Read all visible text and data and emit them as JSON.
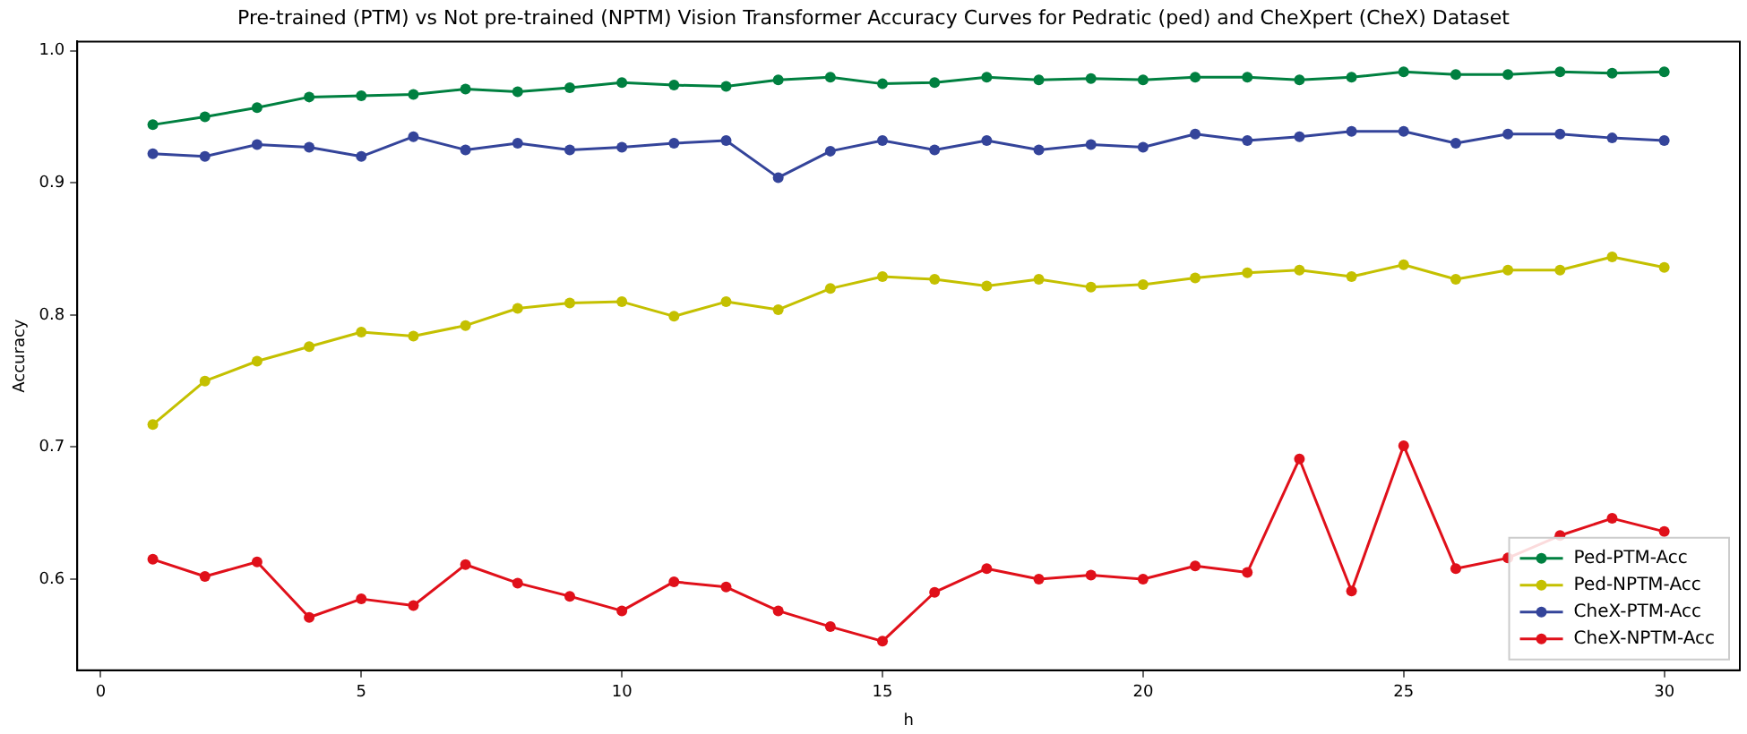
{
  "chart_data": {
    "type": "line",
    "title": "Pre-trained (PTM) vs Not pre-trained (NPTM) Vision Transformer Accuracy Curves for Pedratic (ped) and CheXpert (CheX) Dataset",
    "xlabel": "h",
    "ylabel": "Accuracy",
    "x": [
      1,
      2,
      3,
      4,
      5,
      6,
      7,
      8,
      9,
      10,
      11,
      12,
      13,
      14,
      15,
      16,
      17,
      18,
      19,
      20,
      21,
      22,
      23,
      24,
      25,
      26,
      27,
      28,
      29,
      30
    ],
    "series": [
      {
        "name": "Ped-PTM-Acc",
        "color": "#008040",
        "values": [
          0.944,
          0.95,
          0.957,
          0.965,
          0.966,
          0.967,
          0.971,
          0.969,
          0.972,
          0.976,
          0.974,
          0.973,
          0.978,
          0.98,
          0.975,
          0.976,
          0.98,
          0.978,
          0.979,
          0.978,
          0.98,
          0.98,
          0.978,
          0.98,
          0.984,
          0.982,
          0.982,
          0.984,
          0.983,
          0.984
        ]
      },
      {
        "name": "Ped-NPTM-Acc",
        "color": "#c4c000",
        "values": [
          0.717,
          0.75,
          0.765,
          0.776,
          0.787,
          0.784,
          0.792,
          0.805,
          0.809,
          0.81,
          0.799,
          0.81,
          0.804,
          0.82,
          0.829,
          0.827,
          0.822,
          0.827,
          0.821,
          0.823,
          0.828,
          0.832,
          0.834,
          0.829,
          0.838,
          0.827,
          0.834,
          0.834,
          0.844,
          0.836
        ]
      },
      {
        "name": "CheX-PTM-Acc",
        "color": "#34449a",
        "values": [
          0.922,
          0.92,
          0.929,
          0.927,
          0.92,
          0.935,
          0.925,
          0.93,
          0.925,
          0.927,
          0.93,
          0.932,
          0.904,
          0.924,
          0.932,
          0.925,
          0.932,
          0.925,
          0.929,
          0.927,
          0.937,
          0.932,
          0.935,
          0.939,
          0.939,
          0.93,
          0.937,
          0.937,
          0.934,
          0.932
        ]
      },
      {
        "name": "CheX-NPTM-Acc",
        "color": "#e0101a",
        "values": [
          0.615,
          0.602,
          0.613,
          0.571,
          0.585,
          0.58,
          0.611,
          0.597,
          0.587,
          0.576,
          0.598,
          0.594,
          0.576,
          0.564,
          0.553,
          0.59,
          0.608,
          0.6,
          0.603,
          0.6,
          0.61,
          0.605,
          0.691,
          0.591,
          0.701,
          0.608,
          0.616,
          0.633,
          0.646,
          0.636
        ]
      }
    ],
    "xlim": [
      -0.45,
      31.45
    ],
    "ylim": [
      0.531,
      1.007
    ],
    "xticks": [
      0,
      5,
      10,
      15,
      20,
      25,
      30
    ],
    "yticks": [
      0.6,
      0.7,
      0.8,
      0.9,
      {
        "value": 1,
        "label": "1.0"
      }
    ],
    "grid": false,
    "legend": "bottom right",
    "marker": "circle",
    "line_style": "solid"
  }
}
